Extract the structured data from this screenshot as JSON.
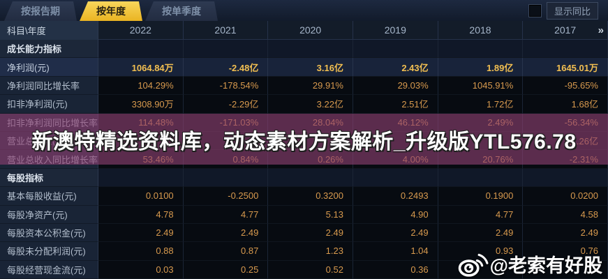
{
  "tabs": [
    {
      "label": "按报告期",
      "active": false
    },
    {
      "label": "按年度",
      "active": true
    },
    {
      "label": "按单季度",
      "active": false
    }
  ],
  "yoy_toggle": {
    "label": "显示同比",
    "checked": false
  },
  "table": {
    "corner_label": "科目\\年度",
    "years": [
      "2022",
      "2021",
      "2020",
      "2019",
      "2018",
      "2017"
    ],
    "more_label": "»",
    "rows": [
      {
        "type": "section",
        "label": "成长能力指标",
        "values": [
          "",
          "",
          "",
          "",
          "",
          ""
        ]
      },
      {
        "type": "data",
        "highlight": true,
        "label": "净利润(元)",
        "values": [
          "1064.84万",
          "-2.48亿",
          "3.16亿",
          "2.43亿",
          "1.89亿",
          "1645.01万"
        ]
      },
      {
        "type": "data",
        "label": "净利润同比增长率",
        "values": [
          "104.29%",
          "-178.54%",
          "29.91%",
          "29.03%",
          "1045.91%",
          "-95.65%"
        ]
      },
      {
        "type": "data",
        "label": "扣非净利润(元)",
        "values": [
          "3308.90万",
          "-2.29亿",
          "3.22亿",
          "2.51亿",
          "1.72亿",
          "1.68亿"
        ]
      },
      {
        "type": "data",
        "label": "扣非净利润同比增长率",
        "values": [
          "114.48%",
          "-171.03%",
          "28.04%",
          "46.12%",
          "2.49%",
          "-56.34%"
        ]
      },
      {
        "type": "data",
        "label": "营业总收入(元)",
        "values": [
          "",
          "",
          "",
          "",
          "",
          "21.26亿"
        ]
      },
      {
        "type": "data",
        "label": "营业总收入同比增长率",
        "values": [
          "53.46%",
          "0.84%",
          "0.26%",
          "4.00%",
          "20.76%",
          "-2.31%"
        ]
      },
      {
        "type": "section",
        "label": "每股指标",
        "values": [
          "",
          "",
          "",
          "",
          "",
          ""
        ]
      },
      {
        "type": "data",
        "label": "基本每股收益(元)",
        "values": [
          "0.0100",
          "-0.2500",
          "0.3200",
          "0.2493",
          "0.1900",
          "0.0200"
        ]
      },
      {
        "type": "data",
        "label": "每股净资产(元)",
        "values": [
          "4.78",
          "4.77",
          "5.13",
          "4.90",
          "4.77",
          "4.58"
        ]
      },
      {
        "type": "data",
        "label": "每股资本公积金(元)",
        "values": [
          "2.49",
          "2.49",
          "2.49",
          "2.49",
          "2.49",
          "2.49"
        ]
      },
      {
        "type": "data",
        "label": "每股未分配利润(元)",
        "values": [
          "0.88",
          "0.87",
          "1.23",
          "1.04",
          "0.93",
          "0.76"
        ]
      },
      {
        "type": "data",
        "label": "每股经营现金流(元)",
        "values": [
          "0.03",
          "0.25",
          "0.52",
          "0.36",
          "",
          ""
        ]
      }
    ]
  },
  "watermark": {
    "text": "新澳特精选资料库，动态素材方案解析_升级版YTL576.78"
  },
  "credit": {
    "handle": "@老索有好股",
    "icon": "weibo-icon"
  },
  "colors": {
    "active_tab": "#eab422",
    "value_text": "#d89a4e",
    "highlight_value_text": "#f2bf51",
    "watermark_band": "#8f4073",
    "background": "#0a101a"
  }
}
